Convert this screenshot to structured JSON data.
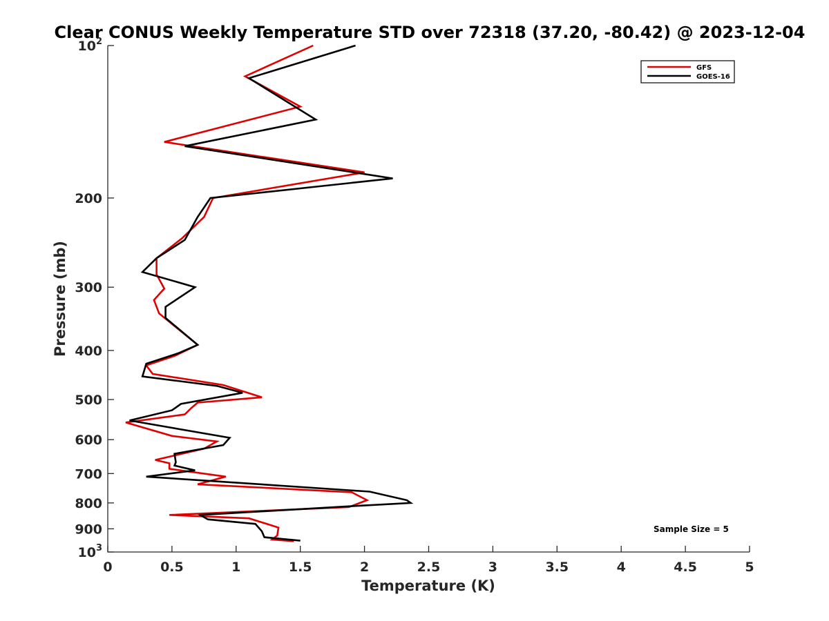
{
  "chart_data": {
    "type": "line",
    "title": "Clear CONUS Weekly Temperature STD over 72318 (37.20, -80.42) @ 2023-12-04",
    "xlabel": "Temperature (K)",
    "ylabel": "Pressure (mb)",
    "xlim": [
      0,
      5
    ],
    "ylim": [
      100,
      1000
    ],
    "y_scale": "log",
    "y_reversed": true,
    "x_ticks": [
      0,
      0.5,
      1,
      1.5,
      2,
      2.5,
      3,
      3.5,
      4,
      4.5,
      5
    ],
    "x_tick_labels": [
      "0",
      "0.5",
      "1",
      "1.5",
      "2",
      "2.5",
      "3",
      "3.5",
      "4",
      "4.5",
      "5"
    ],
    "y_ticks": [
      {
        "value": 100,
        "label": "10",
        "sup": "2"
      },
      {
        "value": 200,
        "label": "200"
      },
      {
        "value": 300,
        "label": "300"
      },
      {
        "value": 400,
        "label": "400"
      },
      {
        "value": 500,
        "label": "500"
      },
      {
        "value": 600,
        "label": "600"
      },
      {
        "value": 700,
        "label": "700"
      },
      {
        "value": 800,
        "label": "800"
      },
      {
        "value": 900,
        "label": "900"
      },
      {
        "value": 1000,
        "label": "10",
        "sup": "3"
      }
    ],
    "grid": false,
    "legend_position": "top-right",
    "annotation": "Sample Size = 5",
    "series": [
      {
        "name": "GFS",
        "color": "#e00000",
        "points": [
          [
            1.6,
            100
          ],
          [
            1.07,
            115
          ],
          [
            1.5,
            132
          ],
          [
            0.44,
            155
          ],
          [
            2.0,
            178
          ],
          [
            0.82,
            200
          ],
          [
            0.75,
            218
          ],
          [
            0.58,
            240
          ],
          [
            0.38,
            263
          ],
          [
            0.38,
            283
          ],
          [
            0.44,
            302
          ],
          [
            0.36,
            318
          ],
          [
            0.4,
            338
          ],
          [
            0.7,
            390
          ],
          [
            0.52,
            410
          ],
          [
            0.3,
            428
          ],
          [
            0.35,
            445
          ],
          [
            0.9,
            468
          ],
          [
            1.2,
            495
          ],
          [
            0.7,
            507
          ],
          [
            0.65,
            520
          ],
          [
            0.6,
            535
          ],
          [
            0.14,
            555
          ],
          [
            0.5,
            590
          ],
          [
            0.85,
            605
          ],
          [
            0.75,
            625
          ],
          [
            0.37,
            658
          ],
          [
            0.48,
            668
          ],
          [
            0.48,
            685
          ],
          [
            0.92,
            710
          ],
          [
            0.7,
            735
          ],
          [
            1.9,
            762
          ],
          [
            2.02,
            790
          ],
          [
            1.88,
            815
          ],
          [
            0.48,
            845
          ],
          [
            1.1,
            858
          ],
          [
            1.33,
            895
          ],
          [
            1.32,
            928
          ],
          [
            1.28,
            945
          ],
          [
            1.45,
            952
          ]
        ]
      },
      {
        "name": "GOES-16",
        "color": "#000000",
        "points": [
          [
            1.93,
            100
          ],
          [
            1.1,
            116
          ],
          [
            1.62,
            140
          ],
          [
            0.6,
            158
          ],
          [
            2.22,
            183
          ],
          [
            0.8,
            200
          ],
          [
            0.7,
            218
          ],
          [
            0.6,
            242
          ],
          [
            0.38,
            263
          ],
          [
            0.27,
            280
          ],
          [
            0.68,
            300
          ],
          [
            0.45,
            328
          ],
          [
            0.45,
            345
          ],
          [
            0.7,
            390
          ],
          [
            0.55,
            405
          ],
          [
            0.3,
            425
          ],
          [
            0.27,
            450
          ],
          [
            0.85,
            470
          ],
          [
            1.05,
            485
          ],
          [
            0.57,
            510
          ],
          [
            0.5,
            525
          ],
          [
            0.17,
            550
          ],
          [
            0.95,
            595
          ],
          [
            0.9,
            615
          ],
          [
            0.52,
            640
          ],
          [
            0.53,
            665
          ],
          [
            0.52,
            675
          ],
          [
            0.68,
            690
          ],
          [
            0.3,
            710
          ],
          [
            2.04,
            760
          ],
          [
            2.33,
            790
          ],
          [
            2.36,
            800
          ],
          [
            1.9,
            812
          ],
          [
            0.72,
            845
          ],
          [
            0.78,
            862
          ],
          [
            1.15,
            880
          ],
          [
            1.2,
            910
          ],
          [
            1.22,
            935
          ],
          [
            1.5,
            950
          ]
        ]
      }
    ]
  }
}
